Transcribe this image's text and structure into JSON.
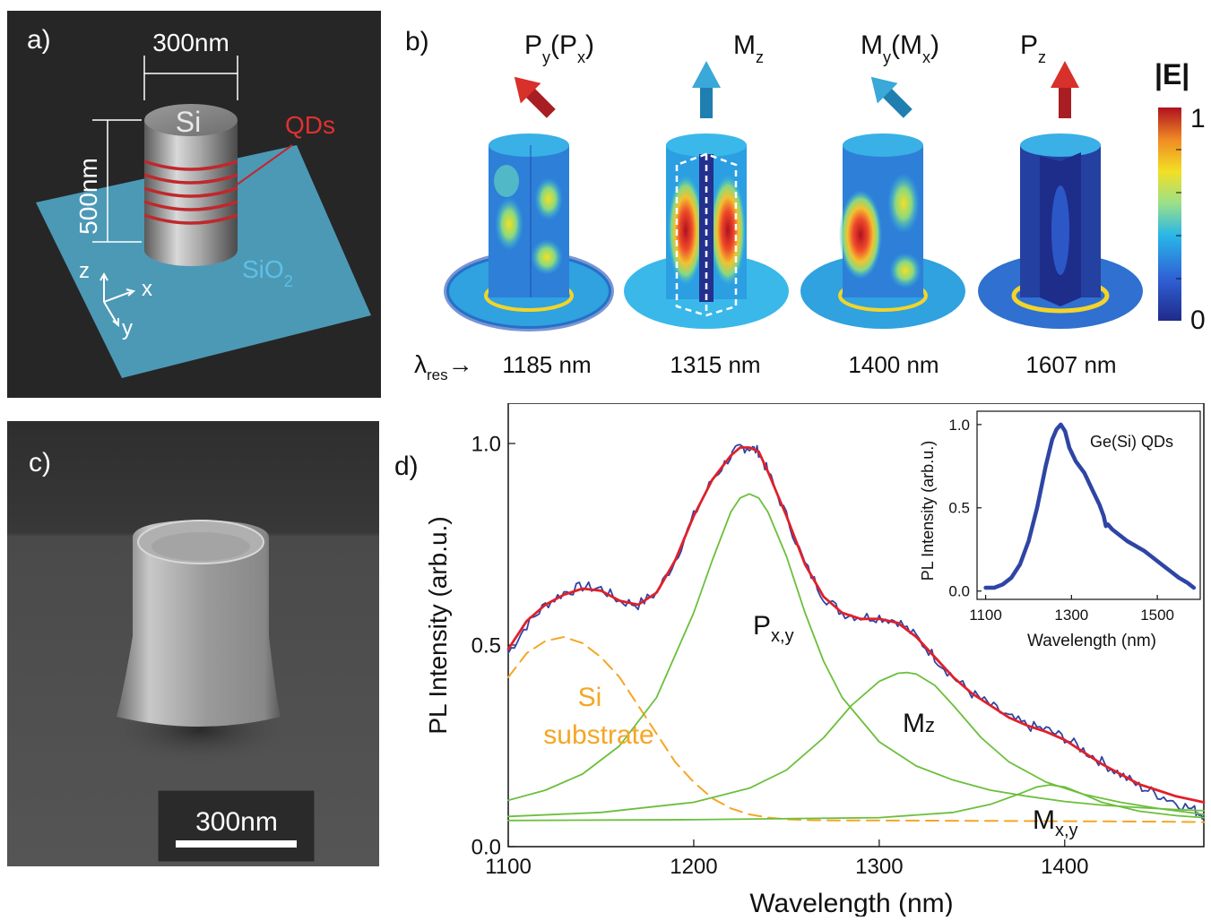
{
  "panel_a": {
    "label": "a)",
    "width_dim": "300nm",
    "height_dim": "500nm",
    "material_pillar": "Si",
    "qds_label": "QDs",
    "substrate_main": "SiO",
    "substrate_sub": "2",
    "axes": {
      "z": "z",
      "x": "x",
      "y": "y"
    },
    "colors": {
      "background": "#262626",
      "substrate": "#4fa3c2",
      "qd_lines": "#c0282c",
      "qd_text": "#e03030"
    }
  },
  "panel_b": {
    "label": "b)",
    "modes": [
      {
        "main": "P",
        "sub": "y",
        "paren_main": "(P",
        "paren_sub": "x",
        "close": ")",
        "arrow_color": "#c0282c",
        "arrow_dir": "tilted-left",
        "wavelength": "1185 nm"
      },
      {
        "main": "M",
        "sub": "z",
        "paren_main": "",
        "paren_sub": "",
        "close": "",
        "arrow_color": "#2a8fc0",
        "arrow_dir": "up",
        "wavelength": "1315 nm"
      },
      {
        "main": "M",
        "sub": "y",
        "paren_main": "(M",
        "paren_sub": "x",
        "close": ")",
        "arrow_color": "#2a8fc0",
        "arrow_dir": "tilted-left",
        "wavelength": "1400 nm"
      },
      {
        "main": "P",
        "sub": "z",
        "paren_main": "",
        "paren_sub": "",
        "close": "",
        "arrow_color": "#c0282c",
        "arrow_dir": "up",
        "wavelength": "1607 nm"
      }
    ],
    "lambda_main": "λ",
    "lambda_sub": "res",
    "lambda_arrow": "→",
    "colorbar": {
      "title": "|E|",
      "max": "1",
      "min": "0"
    }
  },
  "panel_c": {
    "label": "c)",
    "scalebar_label": "300nm"
  },
  "chart_data": [
    {
      "type": "line",
      "panel_label": "d)",
      "xlabel": "Wavelength (nm)",
      "ylabel": "PL Intensity (arb.u.)",
      "xlim": [
        1100,
        1475
      ],
      "ylim": [
        0.0,
        1.1
      ],
      "xticks": [
        1100,
        1200,
        1300,
        1400
      ],
      "yticks": [
        {
          "v": 0.0,
          "label": "0.0"
        },
        {
          "v": 0.5,
          "label": "0.5"
        },
        {
          "v": 1.0,
          "label": "1.0"
        }
      ],
      "annotations": {
        "p_main": "P",
        "p_sub": "x,y",
        "mz_main": "M",
        "mz_sub": "z",
        "mxy_main": "M",
        "mxy_sub": "x,y",
        "si_line1": "Si",
        "si_line2": "substrate"
      },
      "series": [
        {
          "id": "measured",
          "color": "#2f45a5",
          "style": "noisy",
          "x": [
            1100,
            1110,
            1120,
            1130,
            1140,
            1150,
            1160,
            1170,
            1180,
            1190,
            1200,
            1210,
            1220,
            1225,
            1230,
            1235,
            1240,
            1250,
            1260,
            1270,
            1280,
            1290,
            1300,
            1310,
            1320,
            1330,
            1340,
            1350,
            1360,
            1370,
            1380,
            1390,
            1400,
            1410,
            1420,
            1430,
            1440,
            1450,
            1460,
            1470,
            1475
          ],
          "y": [
            0.48,
            0.55,
            0.6,
            0.63,
            0.645,
            0.64,
            0.61,
            0.6,
            0.63,
            0.71,
            0.82,
            0.91,
            0.97,
            0.99,
            0.99,
            0.98,
            0.93,
            0.82,
            0.7,
            0.62,
            0.58,
            0.57,
            0.57,
            0.56,
            0.52,
            0.47,
            0.42,
            0.38,
            0.35,
            0.32,
            0.3,
            0.29,
            0.27,
            0.24,
            0.21,
            0.18,
            0.15,
            0.13,
            0.11,
            0.09,
            0.08
          ]
        },
        {
          "id": "fit",
          "color": "#e0202a",
          "style": "solid",
          "x": [
            1100,
            1110,
            1120,
            1130,
            1140,
            1150,
            1160,
            1170,
            1180,
            1190,
            1200,
            1210,
            1220,
            1225,
            1230,
            1235,
            1240,
            1250,
            1260,
            1270,
            1280,
            1290,
            1300,
            1310,
            1320,
            1330,
            1340,
            1350,
            1360,
            1370,
            1380,
            1390,
            1400,
            1410,
            1420,
            1430,
            1440,
            1450,
            1460,
            1470,
            1475
          ],
          "y": [
            0.49,
            0.56,
            0.6,
            0.625,
            0.64,
            0.635,
            0.61,
            0.6,
            0.63,
            0.71,
            0.82,
            0.91,
            0.97,
            0.99,
            0.99,
            0.98,
            0.93,
            0.82,
            0.7,
            0.62,
            0.58,
            0.565,
            0.565,
            0.555,
            0.52,
            0.47,
            0.42,
            0.38,
            0.35,
            0.32,
            0.3,
            0.285,
            0.265,
            0.235,
            0.205,
            0.18,
            0.155,
            0.14,
            0.125,
            0.115,
            0.11
          ]
        },
        {
          "id": "si-substrate",
          "color": "#f5a623",
          "style": "dashed",
          "x": [
            1100,
            1110,
            1120,
            1130,
            1140,
            1150,
            1160,
            1170,
            1180,
            1190,
            1200,
            1210,
            1220,
            1230,
            1240,
            1250,
            1260,
            1280,
            1300,
            1350,
            1400,
            1450,
            1475
          ],
          "y": [
            0.42,
            0.48,
            0.51,
            0.52,
            0.505,
            0.47,
            0.42,
            0.35,
            0.28,
            0.21,
            0.16,
            0.12,
            0.095,
            0.08,
            0.072,
            0.068,
            0.066,
            0.065,
            0.065,
            0.064,
            0.063,
            0.062,
            0.061
          ]
        },
        {
          "id": "p-xy",
          "color": "#6cbf3c",
          "style": "solid",
          "x": [
            1100,
            1120,
            1140,
            1160,
            1180,
            1200,
            1210,
            1220,
            1225,
            1230,
            1235,
            1240,
            1250,
            1260,
            1270,
            1280,
            1300,
            1320,
            1340,
            1360,
            1380,
            1400,
            1420,
            1440,
            1460,
            1475
          ],
          "y": [
            0.115,
            0.14,
            0.18,
            0.25,
            0.37,
            0.58,
            0.71,
            0.83,
            0.865,
            0.875,
            0.865,
            0.83,
            0.72,
            0.58,
            0.46,
            0.37,
            0.26,
            0.2,
            0.165,
            0.14,
            0.125,
            0.112,
            0.103,
            0.097,
            0.092,
            0.089
          ]
        },
        {
          "id": "mz",
          "color": "#6cbf3c",
          "style": "solid",
          "x": [
            1100,
            1150,
            1200,
            1230,
            1250,
            1270,
            1285,
            1300,
            1310,
            1315,
            1320,
            1330,
            1340,
            1355,
            1370,
            1390,
            1410,
            1430,
            1450,
            1475
          ],
          "y": [
            0.075,
            0.085,
            0.11,
            0.145,
            0.19,
            0.27,
            0.35,
            0.41,
            0.43,
            0.432,
            0.428,
            0.4,
            0.35,
            0.27,
            0.21,
            0.16,
            0.13,
            0.11,
            0.095,
            0.08
          ]
        },
        {
          "id": "m-xy",
          "color": "#6cbf3c",
          "style": "solid",
          "x": [
            1100,
            1200,
            1300,
            1340,
            1360,
            1375,
            1385,
            1392,
            1400,
            1410,
            1420,
            1440,
            1460,
            1475
          ],
          "y": [
            0.065,
            0.067,
            0.072,
            0.085,
            0.105,
            0.13,
            0.148,
            0.153,
            0.148,
            0.13,
            0.11,
            0.088,
            0.077,
            0.072
          ]
        }
      ]
    },
    {
      "type": "line",
      "title": "Ge(Si) QDs",
      "xlabel": "Wavelength (nm)",
      "ylabel": "PL Intensity (arb.u.)",
      "xlim": [
        1080,
        1600
      ],
      "ylim": [
        -0.05,
        1.08
      ],
      "xticks": [
        1100,
        1300,
        1500
      ],
      "yticks": [
        {
          "v": 0.0,
          "label": "0.0"
        },
        {
          "v": 0.5,
          "label": "0.5"
        },
        {
          "v": 1.0,
          "label": "1.0"
        }
      ],
      "series": [
        {
          "id": "ge-si-qds",
          "color": "#2f45a5",
          "style": "thick",
          "x": [
            1100,
            1120,
            1140,
            1160,
            1180,
            1200,
            1220,
            1240,
            1255,
            1265,
            1275,
            1285,
            1295,
            1310,
            1330,
            1350,
            1365,
            1375,
            1380,
            1385,
            1395,
            1410,
            1430,
            1450,
            1470,
            1490,
            1510,
            1530,
            1550,
            1570,
            1585
          ],
          "y": [
            0.02,
            0.02,
            0.04,
            0.08,
            0.16,
            0.3,
            0.5,
            0.75,
            0.91,
            0.97,
            1.0,
            0.96,
            0.86,
            0.78,
            0.71,
            0.6,
            0.52,
            0.45,
            0.39,
            0.4,
            0.37,
            0.34,
            0.3,
            0.27,
            0.24,
            0.2,
            0.16,
            0.12,
            0.08,
            0.05,
            0.02
          ]
        }
      ]
    }
  ]
}
